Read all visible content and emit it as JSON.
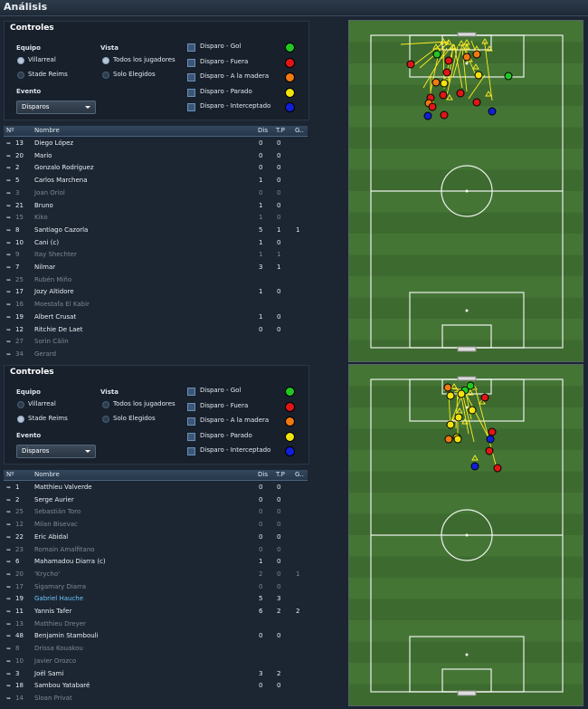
{
  "page": {
    "title": "Análisis"
  },
  "sections": [
    {
      "controls": {
        "title": "Controles",
        "team_label": "Equipo",
        "teams": [
          {
            "label": "Villarreal",
            "selected": true
          },
          {
            "label": "Stade Reims",
            "selected": false
          }
        ],
        "view_label": "Vista",
        "views": [
          {
            "label": "Todos los jugadores",
            "selected": true
          },
          {
            "label": "Solo Elegidos",
            "selected": false
          }
        ],
        "event_label": "Evento",
        "event_value": "Disparos",
        "filters": [
          {
            "label": "Disparo - Gol",
            "color": "#22c722",
            "checked": true
          },
          {
            "label": "Disparo - Fuera",
            "color": "#e01616",
            "checked": true
          },
          {
            "label": "Disparo - A la madera",
            "color": "#f07a10",
            "checked": true
          },
          {
            "label": "Disparo - Parado",
            "color": "#f2e20e",
            "checked": true
          },
          {
            "label": "Disparo - Interceptado",
            "color": "#1020d8",
            "checked": true
          }
        ]
      },
      "table": {
        "columns": [
          "Nº",
          "Nombre",
          "Dis",
          "T.P",
          "G.."
        ],
        "rows": [
          {
            "num": "13",
            "name": "Diego López",
            "dis": "0",
            "tp": "0",
            "g": "",
            "dim": false
          },
          {
            "num": "20",
            "name": "Mario",
            "dis": "0",
            "tp": "0",
            "g": "",
            "dim": false
          },
          {
            "num": "2",
            "name": "Gonzalo Rodríguez",
            "dis": "0",
            "tp": "0",
            "g": "",
            "dim": false
          },
          {
            "num": "5",
            "name": "Carlos Marchena",
            "dis": "1",
            "tp": "0",
            "g": "",
            "dim": false
          },
          {
            "num": "3",
            "name": "Joan Oriol",
            "dis": "0",
            "tp": "0",
            "g": "",
            "dim": true
          },
          {
            "num": "21",
            "name": "Bruno",
            "dis": "1",
            "tp": "0",
            "g": "",
            "dim": false
          },
          {
            "num": "15",
            "name": "Kiko",
            "dis": "1",
            "tp": "0",
            "g": "",
            "dim": true
          },
          {
            "num": "8",
            "name": "Santiago Cazorla",
            "dis": "5",
            "tp": "1",
            "g": "1",
            "dim": false
          },
          {
            "num": "10",
            "name": "Cani (c)",
            "dis": "1",
            "tp": "0",
            "g": "",
            "dim": false
          },
          {
            "num": "9",
            "name": "Itay Shechter",
            "dis": "1",
            "tp": "1",
            "g": "",
            "dim": true
          },
          {
            "num": "7",
            "name": "Nilmar",
            "dis": "3",
            "tp": "1",
            "g": "",
            "dim": false
          },
          {
            "num": "25",
            "name": "Rubén Miño",
            "dis": "",
            "tp": "",
            "g": "",
            "dim": true
          },
          {
            "num": "17",
            "name": "Jozy Altidore",
            "dis": "1",
            "tp": "0",
            "g": "",
            "dim": false
          },
          {
            "num": "16",
            "name": "Moestafa El Kabir",
            "dis": "",
            "tp": "",
            "g": "",
            "dim": true
          },
          {
            "num": "19",
            "name": "Albert Crusat",
            "dis": "1",
            "tp": "0",
            "g": "",
            "dim": false
          },
          {
            "num": "12",
            "name": "Ritchie De Laet",
            "dis": "0",
            "tp": "0",
            "g": "",
            "dim": false
          },
          {
            "num": "27",
            "name": "Sorin Călin",
            "dis": "",
            "tp": "",
            "g": "",
            "dim": true
          },
          {
            "num": "34",
            "name": "Gerard",
            "dis": "",
            "tp": "",
            "g": "",
            "dim": true
          }
        ]
      }
    },
    {
      "controls": {
        "title": "Controles",
        "team_label": "Equipo",
        "teams": [
          {
            "label": "Villarreal",
            "selected": false
          },
          {
            "label": "Stade Reims",
            "selected": true
          }
        ],
        "view_label": "Vista",
        "views": [
          {
            "label": "Todos los jugadores",
            "selected": false
          },
          {
            "label": "Solo Elegidos",
            "selected": false
          }
        ],
        "event_label": "Evento",
        "event_value": "Disparos",
        "filters": [
          {
            "label": "Disparo - Gol",
            "color": "#22c722",
            "checked": true
          },
          {
            "label": "Disparo - Fuera",
            "color": "#e01616",
            "checked": true
          },
          {
            "label": "Disparo - A la madera",
            "color": "#f07a10",
            "checked": true
          },
          {
            "label": "Disparo - Parado",
            "color": "#f2e20e",
            "checked": true
          },
          {
            "label": "Disparo - Interceptado",
            "color": "#1020d8",
            "checked": true
          }
        ]
      },
      "table": {
        "columns": [
          "Nº",
          "Nombre",
          "Dis",
          "T.P",
          "G.."
        ],
        "rows": [
          {
            "num": "1",
            "name": "Matthieu Valverde",
            "dis": "0",
            "tp": "0",
            "g": "",
            "dim": false
          },
          {
            "num": "2",
            "name": "Serge Aurier",
            "dis": "0",
            "tp": "0",
            "g": "",
            "dim": false
          },
          {
            "num": "25",
            "name": "Sebastián Toro",
            "dis": "0",
            "tp": "0",
            "g": "",
            "dim": true
          },
          {
            "num": "12",
            "name": "Milan Bisevac",
            "dis": "0",
            "tp": "0",
            "g": "",
            "dim": true
          },
          {
            "num": "22",
            "name": "Eric Abidal",
            "dis": "0",
            "tp": "0",
            "g": "",
            "dim": false
          },
          {
            "num": "23",
            "name": "Romain Amalfitano",
            "dis": "0",
            "tp": "0",
            "g": "",
            "dim": true
          },
          {
            "num": "6",
            "name": "Mahamadou Diarra (c)",
            "dis": "1",
            "tp": "0",
            "g": "",
            "dim": false
          },
          {
            "num": "20",
            "name": "'Krycho'",
            "dis": "2",
            "tp": "0",
            "g": "1",
            "dim": true
          },
          {
            "num": "17",
            "name": "Sigamary Diarra",
            "dis": "0",
            "tp": "0",
            "g": "",
            "dim": true
          },
          {
            "num": "19",
            "name": "Gabriel Hauche",
            "dis": "5",
            "tp": "3",
            "g": "",
            "dim": false,
            "hl": true
          },
          {
            "num": "11",
            "name": "Yannis Tafer",
            "dis": "6",
            "tp": "2",
            "g": "2",
            "dim": false
          },
          {
            "num": "13",
            "name": "Matthieu Dreyer",
            "dis": "",
            "tp": "",
            "g": "",
            "dim": true
          },
          {
            "num": "48",
            "name": "Benjamin Stambouli",
            "dis": "0",
            "tp": "0",
            "g": "",
            "dim": false
          },
          {
            "num": "8",
            "name": "Drissa Kouakou",
            "dis": "",
            "tp": "",
            "g": "",
            "dim": true
          },
          {
            "num": "10",
            "name": "Javier Orozco",
            "dis": "",
            "tp": "",
            "g": "",
            "dim": true
          },
          {
            "num": "3",
            "name": "Joël Sami",
            "dis": "3",
            "tp": "2",
            "g": "",
            "dim": false
          },
          {
            "num": "18",
            "name": "Sambou Yatabaré",
            "dis": "0",
            "tp": "0",
            "g": "",
            "dim": false
          },
          {
            "num": "14",
            "name": "Sloan Privat",
            "dis": "",
            "tp": "",
            "g": "",
            "dim": true
          }
        ]
      }
    }
  ]
}
